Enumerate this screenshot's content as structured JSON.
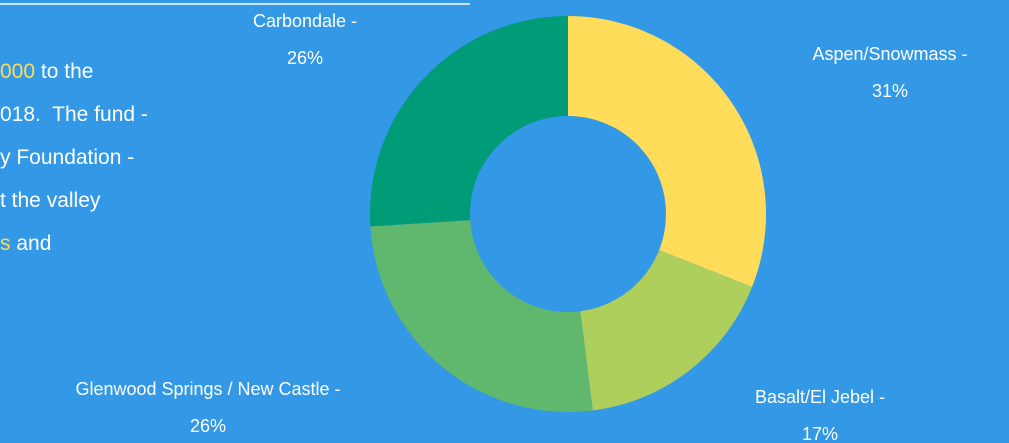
{
  "side_text": [
    [
      {
        "text": "000",
        "highlight": true
      },
      {
        "text": " to the",
        "highlight": false
      }
    ],
    [
      {
        "text": "018.  The fund -",
        "highlight": false
      }
    ],
    [
      {
        "text": "y Foundation -",
        "highlight": false
      }
    ],
    [
      {
        "text": "t the valley",
        "highlight": false
      }
    ],
    [
      {
        "text": "s",
        "highlight": true
      },
      {
        "text": " and",
        "highlight": false
      }
    ]
  ],
  "highlight_color": "#fddc5c",
  "chart_data": {
    "type": "donut",
    "categories": [
      "Aspen/Snowmass -",
      "Basalt/El Jebel -",
      "Glenwood Springs / New Castle -",
      "Carbondale -"
    ],
    "values": [
      31,
      17,
      26,
      26
    ],
    "value_labels": [
      "31%",
      "17%",
      "26%",
      "26%"
    ],
    "colors": [
      "#ffdd5a",
      "#aecf5c",
      "#5fb86d",
      "#009b77"
    ]
  }
}
